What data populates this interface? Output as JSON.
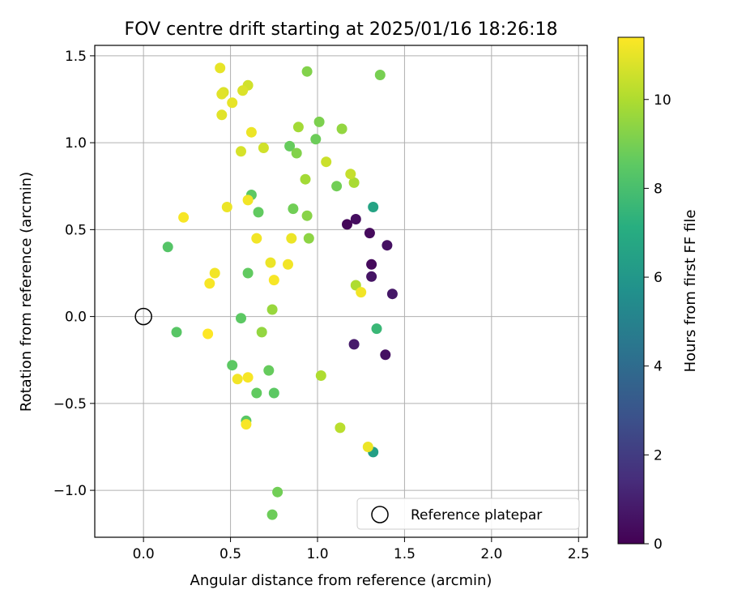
{
  "chart_data": {
    "type": "scatter",
    "title": "FOV centre drift starting at 2025/01/16 18:26:18",
    "xlabel": "Angular distance from reference (arcmin)",
    "ylabel": "Rotation from reference (arcmin)",
    "xlim": [
      -0.28,
      2.55
    ],
    "ylim": [
      -1.27,
      1.56
    ],
    "x_ticks": [
      {
        "value": 0.0,
        "label": "0.0"
      },
      {
        "value": 0.5,
        "label": "0.5"
      },
      {
        "value": 1.0,
        "label": "1.0"
      },
      {
        "value": 1.5,
        "label": "1.5"
      },
      {
        "value": 2.0,
        "label": "2.0"
      },
      {
        "value": 2.5,
        "label": "2.5"
      }
    ],
    "y_ticks": [
      {
        "value": -1.0,
        "label": "−1.0"
      },
      {
        "value": -0.5,
        "label": "−0.5"
      },
      {
        "value": 0.0,
        "label": "0.0"
      },
      {
        "value": 0.5,
        "label": "0.5"
      },
      {
        "value": 1.0,
        "label": "1.0"
      },
      {
        "value": 1.5,
        "label": "1.5"
      }
    ],
    "grid": true,
    "legend": {
      "placement": "lower-right",
      "entries": [
        {
          "label": "Reference platepar",
          "marker": "open-circle"
        }
      ]
    },
    "reference_point": {
      "x": 0.0,
      "y": 0.0
    },
    "colorbar": {
      "label": "Hours from first FF file",
      "colormap": "viridis",
      "range": [
        0,
        11.4
      ],
      "ticks": [
        {
          "value": 0,
          "label": "0"
        },
        {
          "value": 2,
          "label": "2"
        },
        {
          "value": 4,
          "label": "4"
        },
        {
          "value": 6,
          "label": "6"
        },
        {
          "value": 8,
          "label": "8"
        },
        {
          "value": 10,
          "label": "10"
        }
      ]
    },
    "points": [
      {
        "x": 1.17,
        "y": 0.53,
        "hours": 0.2
      },
      {
        "x": 1.22,
        "y": 0.56,
        "hours": 0.4
      },
      {
        "x": 1.3,
        "y": 0.48,
        "hours": 0.3
      },
      {
        "x": 1.4,
        "y": 0.41,
        "hours": 0.5
      },
      {
        "x": 1.31,
        "y": 0.3,
        "hours": 0.3
      },
      {
        "x": 1.31,
        "y": 0.23,
        "hours": 0.6
      },
      {
        "x": 1.43,
        "y": 0.13,
        "hours": 0.7
      },
      {
        "x": 1.21,
        "y": -0.16,
        "hours": 0.8
      },
      {
        "x": 1.39,
        "y": -0.22,
        "hours": 0.5
      },
      {
        "x": 1.32,
        "y": 0.63,
        "hours": 6.6
      },
      {
        "x": 1.32,
        "y": -0.78,
        "hours": 6.4
      },
      {
        "x": 1.34,
        "y": -0.07,
        "hours": 7.6
      },
      {
        "x": 0.14,
        "y": 0.4,
        "hours": 8.3
      },
      {
        "x": 0.19,
        "y": -0.09,
        "hours": 8.4
      },
      {
        "x": 0.56,
        "y": -0.01,
        "hours": 8.5
      },
      {
        "x": 0.51,
        "y": -0.28,
        "hours": 8.5
      },
      {
        "x": 0.6,
        "y": 0.25,
        "hours": 8.6
      },
      {
        "x": 0.62,
        "y": 0.7,
        "hours": 8.5
      },
      {
        "x": 0.66,
        "y": 0.6,
        "hours": 8.6
      },
      {
        "x": 0.65,
        "y": -0.44,
        "hours": 8.6
      },
      {
        "x": 0.59,
        "y": -0.6,
        "hours": 8.4
      },
      {
        "x": 0.72,
        "y": -0.31,
        "hours": 8.7
      },
      {
        "x": 0.75,
        "y": -0.44,
        "hours": 8.5
      },
      {
        "x": 0.77,
        "y": -1.01,
        "hours": 8.9
      },
      {
        "x": 0.74,
        "y": -1.14,
        "hours": 8.8
      },
      {
        "x": 0.84,
        "y": 0.98,
        "hours": 8.7
      },
      {
        "x": 0.86,
        "y": 0.62,
        "hours": 8.9
      },
      {
        "x": 0.99,
        "y": 1.02,
        "hours": 8.8
      },
      {
        "x": 1.11,
        "y": 0.75,
        "hours": 8.9
      },
      {
        "x": 1.01,
        "y": 1.12,
        "hours": 9.1
      },
      {
        "x": 1.36,
        "y": 1.39,
        "hours": 9.0
      },
      {
        "x": 0.94,
        "y": 1.41,
        "hours": 9.2
      },
      {
        "x": 0.88,
        "y": 0.94,
        "hours": 9.2
      },
      {
        "x": 0.94,
        "y": 0.58,
        "hours": 9.3
      },
      {
        "x": 0.95,
        "y": 0.45,
        "hours": 9.4
      },
      {
        "x": 0.74,
        "y": 0.04,
        "hours": 9.6
      },
      {
        "x": 0.68,
        "y": -0.09,
        "hours": 9.5
      },
      {
        "x": 1.14,
        "y": 1.08,
        "hours": 9.5
      },
      {
        "x": 0.89,
        "y": 1.09,
        "hours": 9.8
      },
      {
        "x": 0.93,
        "y": 0.79,
        "hours": 9.8
      },
      {
        "x": 1.21,
        "y": 0.77,
        "hours": 9.9
      },
      {
        "x": 1.22,
        "y": 0.18,
        "hours": 10.0
      },
      {
        "x": 1.02,
        "y": -0.34,
        "hours": 10.0
      },
      {
        "x": 1.13,
        "y": -0.64,
        "hours": 10.2
      },
      {
        "x": 1.19,
        "y": 0.82,
        "hours": 10.4
      },
      {
        "x": 1.05,
        "y": 0.89,
        "hours": 10.5
      },
      {
        "x": 0.69,
        "y": 0.97,
        "hours": 10.6
      },
      {
        "x": 0.56,
        "y": 0.95,
        "hours": 10.7
      },
      {
        "x": 0.6,
        "y": 1.33,
        "hours": 10.6
      },
      {
        "x": 0.57,
        "y": 1.3,
        "hours": 10.8
      },
      {
        "x": 0.45,
        "y": 1.16,
        "hours": 10.9
      },
      {
        "x": 0.46,
        "y": 1.29,
        "hours": 10.8
      },
      {
        "x": 0.45,
        "y": 1.28,
        "hours": 10.9
      },
      {
        "x": 0.44,
        "y": 1.43,
        "hours": 11.0
      },
      {
        "x": 0.51,
        "y": 1.23,
        "hours": 11.0
      },
      {
        "x": 0.62,
        "y": 1.06,
        "hours": 11.1
      },
      {
        "x": 0.48,
        "y": 0.63,
        "hours": 11.1
      },
      {
        "x": 0.6,
        "y": 0.67,
        "hours": 11.2
      },
      {
        "x": 0.65,
        "y": 0.45,
        "hours": 11.2
      },
      {
        "x": 0.23,
        "y": 0.57,
        "hours": 11.3
      },
      {
        "x": 0.41,
        "y": 0.25,
        "hours": 11.2
      },
      {
        "x": 0.38,
        "y": 0.19,
        "hours": 11.3
      },
      {
        "x": 0.85,
        "y": 0.45,
        "hours": 11.1
      },
      {
        "x": 0.73,
        "y": 0.31,
        "hours": 11.1
      },
      {
        "x": 0.83,
        "y": 0.3,
        "hours": 11.2
      },
      {
        "x": 0.75,
        "y": 0.21,
        "hours": 11.3
      },
      {
        "x": 1.25,
        "y": 0.14,
        "hours": 11.2
      },
      {
        "x": 0.37,
        "y": -0.1,
        "hours": 11.4
      },
      {
        "x": 0.54,
        "y": -0.36,
        "hours": 11.2
      },
      {
        "x": 0.6,
        "y": -0.35,
        "hours": 11.3
      },
      {
        "x": 0.59,
        "y": -0.62,
        "hours": 11.3
      },
      {
        "x": 1.29,
        "y": -0.75,
        "hours": 11.1
      }
    ]
  }
}
